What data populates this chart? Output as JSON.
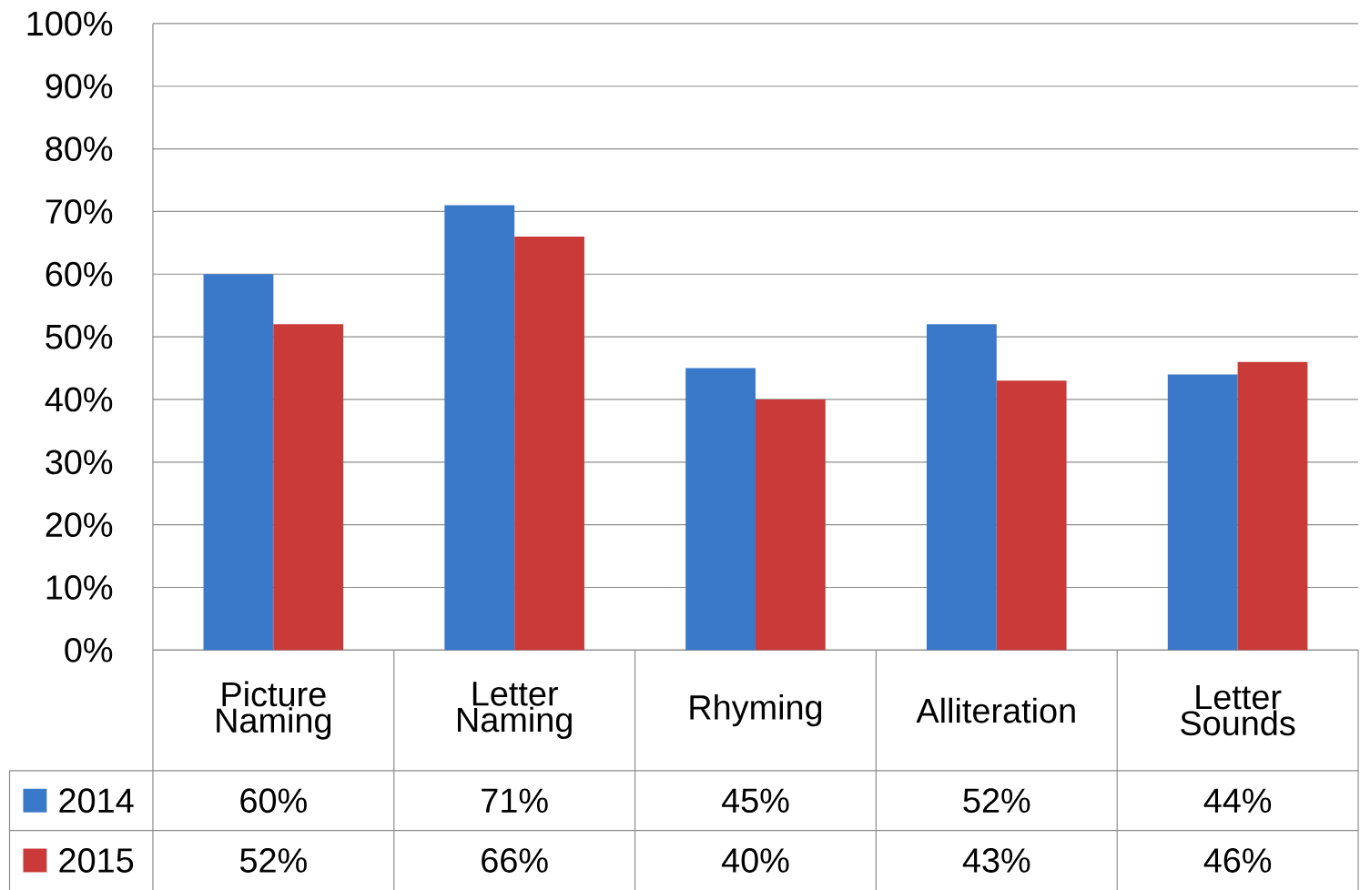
{
  "chart_data": {
    "type": "bar",
    "categories": [
      "Picture Naming",
      "Letter Naming",
      "Rhyming",
      "Alliteration",
      "Letter Sounds"
    ],
    "series": [
      {
        "name": "2014",
        "color": "#3a78c9",
        "values": [
          60,
          71,
          45,
          52,
          44
        ],
        "value_labels": [
          "60%",
          "71%",
          "45%",
          "52%",
          "44%"
        ]
      },
      {
        "name": "2015",
        "color": "#c93a38",
        "values": [
          52,
          66,
          40,
          43,
          46
        ],
        "value_labels": [
          "52%",
          "66%",
          "40%",
          "43%",
          "46%"
        ]
      }
    ],
    "ylim": [
      0,
      100
    ],
    "yticks": [
      {
        "value": 0,
        "label": "0%"
      },
      {
        "value": 10,
        "label": "10%"
      },
      {
        "value": 20,
        "label": "20%"
      },
      {
        "value": 30,
        "label": "30%"
      },
      {
        "value": 40,
        "label": "40%"
      },
      {
        "value": 50,
        "label": "50%"
      },
      {
        "value": 60,
        "label": "60%"
      },
      {
        "value": 70,
        "label": "70%"
      },
      {
        "value": 80,
        "label": "80%"
      },
      {
        "value": 90,
        "label": "90%"
      },
      {
        "value": 100,
        "label": "100%"
      }
    ],
    "grid": "y",
    "legend": "bottom left"
  }
}
